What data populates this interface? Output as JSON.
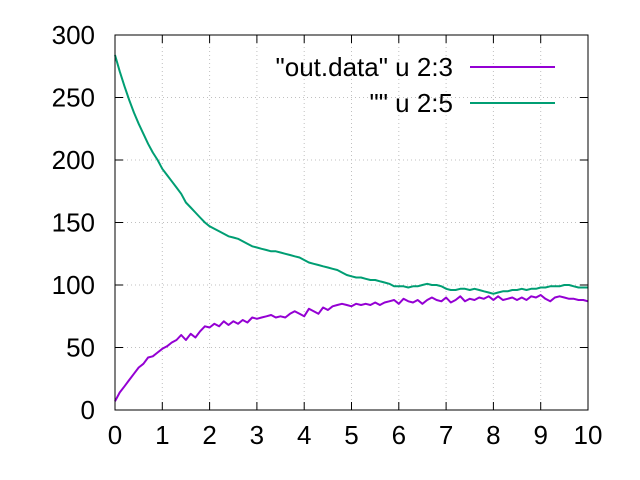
{
  "chart_data": {
    "type": "line",
    "title": "",
    "xlabel": "",
    "ylabel": "",
    "xlim": [
      0,
      10
    ],
    "ylim": [
      0,
      300
    ],
    "x_ticks": [
      "0",
      "1",
      "2",
      "3",
      "4",
      "5",
      "6",
      "7",
      "8",
      "9",
      "10"
    ],
    "y_ticks": [
      "0",
      "50",
      "100",
      "150",
      "200",
      "250",
      "300"
    ],
    "grid": true,
    "legend_position": "top-right",
    "series": [
      {
        "name": "\"out.data\" u 2:3",
        "color": "#9400d3",
        "points": [
          [
            0.0,
            7
          ],
          [
            0.1,
            14
          ],
          [
            0.2,
            19
          ],
          [
            0.3,
            24
          ],
          [
            0.4,
            29
          ],
          [
            0.5,
            34
          ],
          [
            0.6,
            37
          ],
          [
            0.7,
            42
          ],
          [
            0.8,
            43
          ],
          [
            0.9,
            46
          ],
          [
            1.0,
            49
          ],
          [
            1.1,
            51
          ],
          [
            1.2,
            54
          ],
          [
            1.3,
            56
          ],
          [
            1.4,
            60
          ],
          [
            1.5,
            56
          ],
          [
            1.6,
            61
          ],
          [
            1.7,
            58
          ],
          [
            1.8,
            63
          ],
          [
            1.9,
            67
          ],
          [
            2.0,
            66
          ],
          [
            2.1,
            69
          ],
          [
            2.2,
            67
          ],
          [
            2.3,
            71
          ],
          [
            2.4,
            68
          ],
          [
            2.5,
            71
          ],
          [
            2.6,
            69
          ],
          [
            2.7,
            72
          ],
          [
            2.8,
            70
          ],
          [
            2.9,
            74
          ],
          [
            3.0,
            73
          ],
          [
            3.1,
            74
          ],
          [
            3.2,
            75
          ],
          [
            3.3,
            76
          ],
          [
            3.4,
            74
          ],
          [
            3.5,
            75
          ],
          [
            3.6,
            74
          ],
          [
            3.7,
            77
          ],
          [
            3.8,
            79
          ],
          [
            3.9,
            77
          ],
          [
            4.0,
            75
          ],
          [
            4.1,
            81
          ],
          [
            4.2,
            79
          ],
          [
            4.3,
            77
          ],
          [
            4.4,
            82
          ],
          [
            4.5,
            80
          ],
          [
            4.6,
            83
          ],
          [
            4.7,
            84
          ],
          [
            4.8,
            85
          ],
          [
            4.9,
            84
          ],
          [
            5.0,
            83
          ],
          [
            5.1,
            85
          ],
          [
            5.2,
            84
          ],
          [
            5.3,
            85
          ],
          [
            5.4,
            84
          ],
          [
            5.5,
            86
          ],
          [
            5.6,
            84
          ],
          [
            5.7,
            86
          ],
          [
            5.8,
            87
          ],
          [
            5.9,
            88
          ],
          [
            6.0,
            85
          ],
          [
            6.1,
            89
          ],
          [
            6.2,
            87
          ],
          [
            6.3,
            86
          ],
          [
            6.4,
            88
          ],
          [
            6.5,
            85
          ],
          [
            6.6,
            88
          ],
          [
            6.7,
            90
          ],
          [
            6.8,
            88
          ],
          [
            6.9,
            87
          ],
          [
            7.0,
            90
          ],
          [
            7.1,
            86
          ],
          [
            7.2,
            88
          ],
          [
            7.3,
            91
          ],
          [
            7.4,
            87
          ],
          [
            7.5,
            89
          ],
          [
            7.6,
            88
          ],
          [
            7.7,
            90
          ],
          [
            7.8,
            89
          ],
          [
            7.9,
            91
          ],
          [
            8.0,
            88
          ],
          [
            8.1,
            91
          ],
          [
            8.2,
            88
          ],
          [
            8.3,
            89
          ],
          [
            8.4,
            90
          ],
          [
            8.5,
            88
          ],
          [
            8.6,
            90
          ],
          [
            8.7,
            88
          ],
          [
            8.8,
            91
          ],
          [
            8.9,
            90
          ],
          [
            9.0,
            92
          ],
          [
            9.1,
            89
          ],
          [
            9.2,
            87
          ],
          [
            9.3,
            90
          ],
          [
            9.4,
            91
          ],
          [
            9.5,
            90
          ],
          [
            9.6,
            89
          ],
          [
            9.7,
            89
          ],
          [
            9.8,
            88
          ],
          [
            9.9,
            88
          ],
          [
            10.0,
            87
          ]
        ]
      },
      {
        "name": "\"\" u 2:5",
        "color": "#009e73",
        "points": [
          [
            0.0,
            284
          ],
          [
            0.1,
            271
          ],
          [
            0.2,
            259
          ],
          [
            0.3,
            248
          ],
          [
            0.4,
            238
          ],
          [
            0.5,
            229
          ],
          [
            0.6,
            221
          ],
          [
            0.7,
            213
          ],
          [
            0.8,
            206
          ],
          [
            0.9,
            200
          ],
          [
            1.0,
            193
          ],
          [
            1.1,
            188
          ],
          [
            1.2,
            183
          ],
          [
            1.3,
            178
          ],
          [
            1.4,
            173
          ],
          [
            1.5,
            166
          ],
          [
            1.6,
            162
          ],
          [
            1.7,
            158
          ],
          [
            1.8,
            154
          ],
          [
            1.9,
            150
          ],
          [
            2.0,
            147
          ],
          [
            2.1,
            145
          ],
          [
            2.2,
            143
          ],
          [
            2.3,
            141
          ],
          [
            2.4,
            139
          ],
          [
            2.5,
            138
          ],
          [
            2.6,
            137
          ],
          [
            2.7,
            135
          ],
          [
            2.8,
            133
          ],
          [
            2.9,
            131
          ],
          [
            3.0,
            130
          ],
          [
            3.1,
            129
          ],
          [
            3.2,
            128
          ],
          [
            3.3,
            127
          ],
          [
            3.4,
            127
          ],
          [
            3.5,
            126
          ],
          [
            3.6,
            125
          ],
          [
            3.7,
            124
          ],
          [
            3.8,
            123
          ],
          [
            3.9,
            122
          ],
          [
            4.0,
            120
          ],
          [
            4.1,
            118
          ],
          [
            4.2,
            117
          ],
          [
            4.3,
            116
          ],
          [
            4.4,
            115
          ],
          [
            4.5,
            114
          ],
          [
            4.6,
            113
          ],
          [
            4.7,
            112
          ],
          [
            4.8,
            110
          ],
          [
            4.9,
            108
          ],
          [
            5.0,
            107
          ],
          [
            5.1,
            106
          ],
          [
            5.2,
            106
          ],
          [
            5.3,
            105
          ],
          [
            5.4,
            104
          ],
          [
            5.5,
            104
          ],
          [
            5.6,
            103
          ],
          [
            5.7,
            102
          ],
          [
            5.8,
            101
          ],
          [
            5.9,
            99
          ],
          [
            6.0,
            99
          ],
          [
            6.1,
            99
          ],
          [
            6.2,
            98
          ],
          [
            6.3,
            99
          ],
          [
            6.4,
            99
          ],
          [
            6.5,
            100
          ],
          [
            6.6,
            101
          ],
          [
            6.7,
            100
          ],
          [
            6.8,
            100
          ],
          [
            6.9,
            99
          ],
          [
            7.0,
            97
          ],
          [
            7.1,
            96
          ],
          [
            7.2,
            96
          ],
          [
            7.3,
            97
          ],
          [
            7.4,
            97
          ],
          [
            7.5,
            96
          ],
          [
            7.6,
            97
          ],
          [
            7.7,
            96
          ],
          [
            7.8,
            95
          ],
          [
            7.9,
            94
          ],
          [
            8.0,
            93
          ],
          [
            8.1,
            94
          ],
          [
            8.2,
            95
          ],
          [
            8.3,
            95
          ],
          [
            8.4,
            96
          ],
          [
            8.5,
            96
          ],
          [
            8.6,
            97
          ],
          [
            8.7,
            96
          ],
          [
            8.8,
            97
          ],
          [
            8.9,
            97
          ],
          [
            9.0,
            98
          ],
          [
            9.1,
            98
          ],
          [
            9.2,
            99
          ],
          [
            9.3,
            99
          ],
          [
            9.4,
            99
          ],
          [
            9.5,
            100
          ],
          [
            9.6,
            100
          ],
          [
            9.7,
            99
          ],
          [
            9.8,
            98
          ],
          [
            9.9,
            98
          ],
          [
            10.0,
            98
          ]
        ]
      }
    ]
  }
}
